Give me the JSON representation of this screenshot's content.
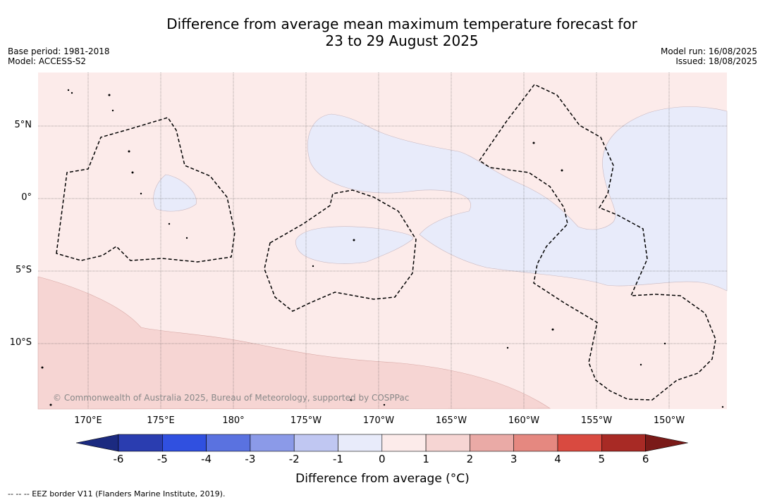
{
  "title_line1": "Difference from average mean maximum temperature forecast for",
  "title_line2": "23 to 29 August 2025",
  "base_period": "Base period: 1981-2018",
  "model": "Model: ACCESS-S2",
  "model_run": "Model run: 16/08/2025",
  "issued": "Issued: 18/08/2025",
  "lat_labels": [
    "5°N",
    "0°",
    "5°S",
    "10°S"
  ],
  "lon_labels": [
    "170°E",
    "175°E",
    "180°",
    "175°W",
    "170°W",
    "165°W",
    "160°W",
    "155°W",
    "150°W"
  ],
  "copyright": "© Commonwealth of Australia 2025, Bureau of Meteorology, supported by COSPPac",
  "colorbar": {
    "ticks": [
      "-6",
      "-5",
      "-4",
      "-3",
      "-2",
      "-1",
      "0",
      "1",
      "2",
      "3",
      "4",
      "5",
      "6"
    ],
    "colors": [
      "#1b2a80",
      "#2a3db0",
      "#3050e0",
      "#5a72e0",
      "#8b9ae8",
      "#c0c7f2",
      "#e8ebfa",
      "#fcebea",
      "#f6d5d3",
      "#eaaaa6",
      "#e58880",
      "#d94a40",
      "#a82a25",
      "#7a1a18"
    ],
    "label": "Difference from average (°C)"
  },
  "footnote": "-- -- -- EEZ border V11 (Flanders Marine Institute, 2019).",
  "field_colors": {
    "zero_to_one": "#fcebea",
    "one_to_two": "#f6d5d3",
    "minus_one_to_zero": "#e8ebfa"
  }
}
